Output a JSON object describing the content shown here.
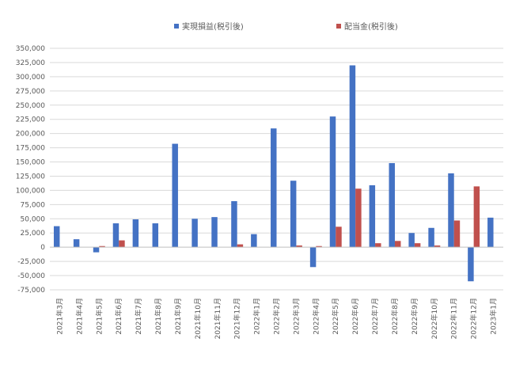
{
  "chart_data": {
    "type": "bar",
    "categories": [
      "2021年3月",
      "2021年4月",
      "2021年5月",
      "2021年6月",
      "2021年7月",
      "2021年8月",
      "2021年9月",
      "2021年10月",
      "2021年11月",
      "2021年12月",
      "2022年1月",
      "2022年2月",
      "2022年3月",
      "2022年4月",
      "2022年5月",
      "2022年6月",
      "2022年7月",
      "2022年8月",
      "2022年9月",
      "2022年10月",
      "2022年11月",
      "2022年12月",
      "2023年1月"
    ],
    "series": [
      {
        "name": "実現損益(税引後)",
        "color": "#4472c4",
        "values": [
          37000,
          14000,
          -9000,
          42000,
          49000,
          42000,
          182000,
          50000,
          53000,
          81000,
          23000,
          209000,
          117000,
          -35000,
          230000,
          320000,
          109000,
          148000,
          25000,
          34000,
          130000,
          -60000,
          52000
        ]
      },
      {
        "name": "配当金(税引後)",
        "color": "#c0504d",
        "values": [
          0,
          0,
          2000,
          12000,
          0,
          0,
          0,
          0,
          0,
          5000,
          0,
          0,
          3000,
          2000,
          36000,
          103000,
          7000,
          11000,
          7000,
          3000,
          47000,
          107000,
          0
        ]
      }
    ],
    "ylim": [
      -75000,
      350000
    ],
    "ytick_step": 25000,
    "yticks": [
      "-75,000",
      "-50,000",
      "-25,000",
      "0",
      "25,000",
      "50,000",
      "75,000",
      "100,000",
      "125,000",
      "150,000",
      "175,000",
      "200,000",
      "225,000",
      "250,000",
      "275,000",
      "300,000",
      "325,000",
      "350,000"
    ],
    "grid": true,
    "legend_position": "top"
  }
}
